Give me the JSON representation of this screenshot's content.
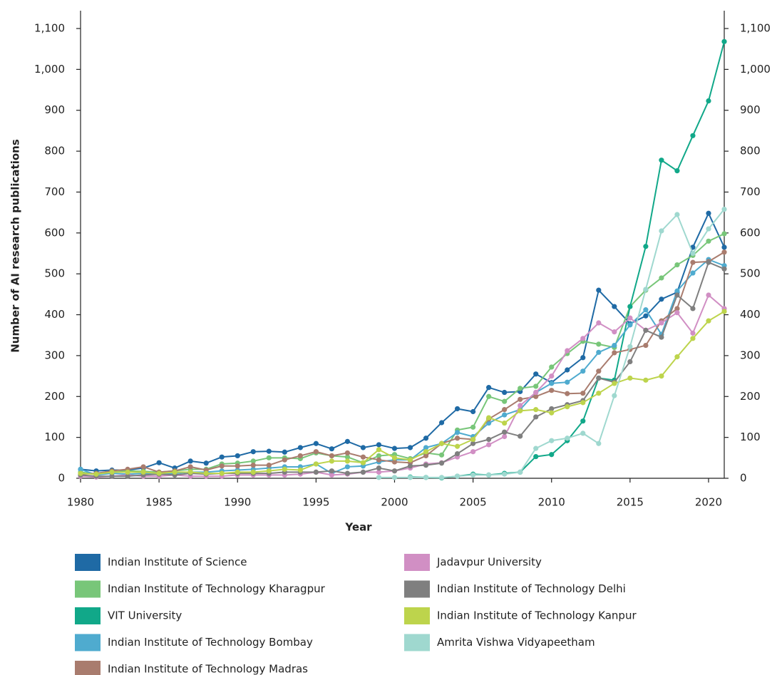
{
  "chart_data": {
    "type": "line",
    "xlabel": "Year",
    "ylabel": "Number of AI research publications",
    "x": [
      1980,
      1981,
      1982,
      1983,
      1984,
      1985,
      1986,
      1987,
      1988,
      1989,
      1990,
      1991,
      1992,
      1993,
      1994,
      1995,
      1996,
      1997,
      1998,
      1999,
      2000,
      2001,
      2002,
      2003,
      2004,
      2005,
      2006,
      2007,
      2008,
      2009,
      2010,
      2011,
      2012,
      2013,
      2014,
      2015,
      2016,
      2017,
      2018,
      2019,
      2020,
      2021
    ],
    "xlim": [
      1980,
      2021
    ],
    "xticks": [
      1980,
      1985,
      1990,
      1995,
      2000,
      2005,
      2010,
      2015,
      2020
    ],
    "ylim": [
      0,
      1100
    ],
    "yticks": [
      0,
      100,
      200,
      300,
      400,
      500,
      600,
      700,
      800,
      900,
      {
        "value": 1000,
        "label": "1,000"
      },
      {
        "value": 1100,
        "label": "1,100"
      }
    ],
    "series": [
      {
        "name": "Indian Institute of Science",
        "color": "#1f6aa5",
        "values": [
          22,
          18,
          20,
          20,
          25,
          38,
          25,
          42,
          37,
          52,
          55,
          65,
          66,
          64,
          75,
          85,
          72,
          90,
          75,
          82,
          73,
          75,
          98,
          136,
          170,
          163,
          222,
          210,
          212,
          255,
          234,
          265,
          295,
          460,
          420,
          378,
          397,
          438,
          455,
          565,
          648,
          565
        ]
      },
      {
        "name": "Indian Institute of Technology Kharagpur",
        "color": "#78c679",
        "values": [
          15,
          10,
          15,
          18,
          17,
          15,
          18,
          22,
          22,
          35,
          37,
          42,
          50,
          50,
          48,
          62,
          55,
          52,
          38,
          55,
          58,
          48,
          62,
          57,
          118,
          125,
          200,
          188,
          220,
          225,
          272,
          305,
          335,
          328,
          320,
          420,
          460,
          490,
          522,
          545,
          580,
          598
        ]
      },
      {
        "name": "VIT University",
        "color": "#11a889",
        "values": [
          null,
          null,
          null,
          null,
          null,
          null,
          null,
          null,
          null,
          null,
          null,
          null,
          null,
          null,
          null,
          null,
          null,
          null,
          null,
          null,
          null,
          3,
          2,
          1,
          5,
          10,
          8,
          12,
          15,
          53,
          58,
          92,
          140,
          245,
          240,
          420,
          567,
          778,
          752,
          838,
          923,
          1068
        ]
      },
      {
        "name": "Indian Institute of Technology Bombay",
        "color": "#4fabcf",
        "values": [
          22,
          8,
          12,
          10,
          12,
          10,
          12,
          15,
          15,
          18,
          20,
          22,
          25,
          28,
          28,
          35,
          12,
          28,
          30,
          40,
          45,
          45,
          75,
          85,
          112,
          102,
          135,
          155,
          168,
          210,
          232,
          235,
          262,
          308,
          325,
          375,
          412,
          352,
          458,
          502,
          535,
          520
        ]
      },
      {
        "name": "Indian Institute of Technology Madras",
        "color": "#a97c6e",
        "values": [
          10,
          12,
          18,
          22,
          28,
          15,
          18,
          28,
          20,
          30,
          30,
          32,
          32,
          45,
          55,
          65,
          55,
          62,
          52,
          45,
          40,
          38,
          55,
          85,
          98,
          95,
          145,
          168,
          193,
          200,
          215,
          207,
          208,
          262,
          307,
          315,
          325,
          385,
          415,
          528,
          530,
          553
        ]
      },
      {
        "name": "Jadavpur University",
        "color": "#d18fc4",
        "values": [
          5,
          3,
          5,
          8,
          5,
          5,
          8,
          5,
          5,
          5,
          8,
          8,
          8,
          8,
          10,
          15,
          8,
          10,
          15,
          15,
          18,
          25,
          35,
          38,
          52,
          65,
          82,
          102,
          178,
          210,
          250,
          312,
          342,
          380,
          358,
          392,
          362,
          380,
          405,
          355,
          448,
          415
        ]
      },
      {
        "name": "Indian Institute of Technology Delhi",
        "color": "#7f7f7f",
        "values": [
          8,
          5,
          5,
          5,
          8,
          10,
          8,
          12,
          10,
          12,
          12,
          12,
          12,
          15,
          15,
          15,
          18,
          12,
          15,
          25,
          18,
          30,
          32,
          37,
          60,
          85,
          95,
          113,
          103,
          150,
          170,
          180,
          190,
          245,
          235,
          285,
          362,
          345,
          448,
          415,
          528,
          512
        ]
      },
      {
        "name": "Indian Institute of Technology Kanpur",
        "color": "#bdd44c",
        "values": [
          12,
          10,
          15,
          15,
          15,
          12,
          15,
          15,
          12,
          12,
          15,
          15,
          18,
          22,
          20,
          35,
          42,
          42,
          38,
          70,
          50,
          45,
          65,
          85,
          78,
          95,
          148,
          135,
          165,
          168,
          160,
          175,
          185,
          208,
          232,
          245,
          240,
          250,
          297,
          342,
          385,
          408
        ]
      },
      {
        "name": "Amrita Vishwa Vidyapeetham",
        "color": "#9fd8cf",
        "values": [
          null,
          null,
          null,
          null,
          null,
          null,
          null,
          null,
          null,
          null,
          null,
          null,
          null,
          null,
          null,
          null,
          null,
          null,
          null,
          2,
          2,
          2,
          2,
          2,
          5,
          8,
          8,
          10,
          15,
          73,
          92,
          98,
          110,
          85,
          202,
          322,
          462,
          605,
          645,
          550,
          610,
          658
        ]
      }
    ]
  }
}
